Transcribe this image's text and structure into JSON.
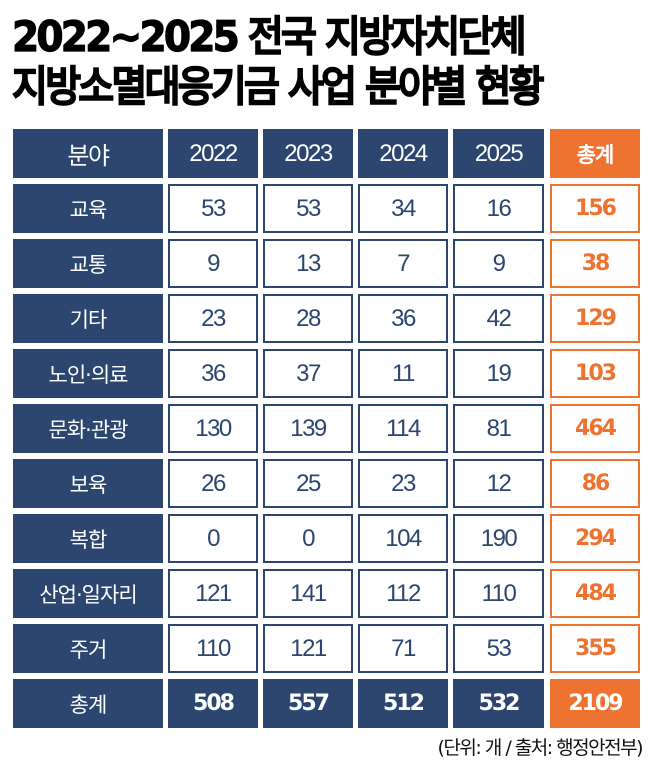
{
  "title": {
    "line1": "2022~2025 전국 지방자치단체",
    "line2": "지방소멸대응기금 사업 분야별 현황"
  },
  "colors": {
    "navy": "#2c466f",
    "orange": "#ee7230",
    "white": "#ffffff"
  },
  "table": {
    "headers": [
      "분야",
      "2022",
      "2023",
      "2024",
      "2025",
      "총계"
    ],
    "rows": [
      {
        "label": "교육",
        "values": [
          "53",
          "53",
          "34",
          "16"
        ],
        "total": "156"
      },
      {
        "label": "교통",
        "values": [
          "9",
          "13",
          "7",
          "9"
        ],
        "total": "38"
      },
      {
        "label": "기타",
        "values": [
          "23",
          "28",
          "36",
          "42"
        ],
        "total": "129"
      },
      {
        "label": "노인·의료",
        "values": [
          "36",
          "37",
          "11",
          "19"
        ],
        "total": "103"
      },
      {
        "label": "문화·관광",
        "values": [
          "130",
          "139",
          "114",
          "81"
        ],
        "total": "464"
      },
      {
        "label": "보육",
        "values": [
          "26",
          "25",
          "23",
          "12"
        ],
        "total": "86"
      },
      {
        "label": "복합",
        "values": [
          "0",
          "0",
          "104",
          "190"
        ],
        "total": "294"
      },
      {
        "label": "산업·일자리",
        "values": [
          "121",
          "141",
          "112",
          "110"
        ],
        "total": "484"
      },
      {
        "label": "주거",
        "values": [
          "110",
          "121",
          "71",
          "53"
        ],
        "total": "355"
      }
    ],
    "summary": {
      "label": "총계",
      "values": [
        "508",
        "557",
        "512",
        "532"
      ],
      "total": "2109"
    }
  },
  "footer": {
    "note": "(단위: 개 / 출처: 행정안전부)"
  },
  "chart_data": {
    "type": "table",
    "title": "2022~2025 전국 지방자치단체 지방소멸대응기금 사업 분야별 현황",
    "unit": "개",
    "source": "행정안전부",
    "columns": [
      "분야",
      "2022",
      "2023",
      "2024",
      "2025",
      "총계"
    ],
    "categories": [
      "교육",
      "교통",
      "기타",
      "노인·의료",
      "문화·관광",
      "보육",
      "복합",
      "산업·일자리",
      "주거"
    ],
    "series": [
      {
        "name": "2022",
        "values": [
          53,
          9,
          23,
          36,
          130,
          26,
          0,
          121,
          110
        ]
      },
      {
        "name": "2023",
        "values": [
          53,
          13,
          28,
          37,
          139,
          25,
          0,
          141,
          121
        ]
      },
      {
        "name": "2024",
        "values": [
          34,
          7,
          36,
          11,
          114,
          23,
          104,
          112,
          71
        ]
      },
      {
        "name": "2025",
        "values": [
          16,
          9,
          42,
          19,
          81,
          12,
          190,
          110,
          53
        ]
      },
      {
        "name": "총계",
        "values": [
          156,
          38,
          129,
          103,
          464,
          86,
          294,
          484,
          355
        ]
      }
    ],
    "totals": {
      "2022": 508,
      "2023": 557,
      "2024": 512,
      "2025": 532,
      "총계": 2109
    }
  }
}
